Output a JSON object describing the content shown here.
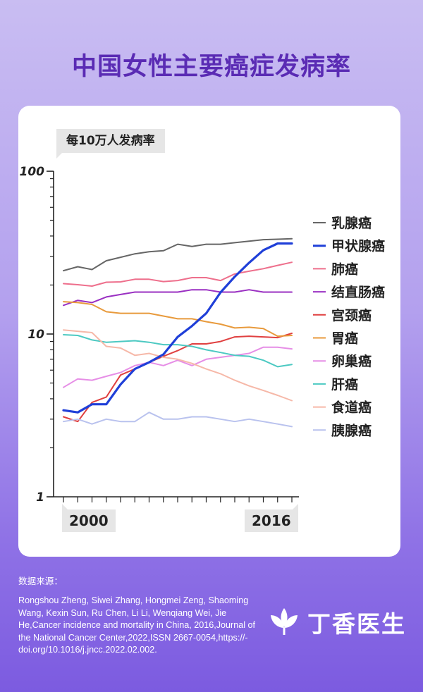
{
  "title": "中国女性主要癌症发病率",
  "unit_label": "每10万人发病率",
  "x_first_label": "2000",
  "x_last_label": "2016",
  "source_label": "数据来源：",
  "source_text": "Rongshou Zheng, Siwei Zhang, Hongmei Zeng, Shaoming Wang, Kexin Sun, Ru Chen, Li Li, Wenqiang Wei, Jie He,Cancer incidence and mortality in China, 2016,Journal of the National Cancer Center,2022,ISSN 2667-0054,https://-doi.org/10.1016/j.jncc.2022.02.002.",
  "brand_name": "丁香医生",
  "brand_icon": "clove-flower-icon",
  "colors": {
    "title": "#5a2bb4",
    "background_top": "#c9bdf2",
    "background_bottom": "#7c5be0"
  },
  "chart_data": {
    "type": "line",
    "y_scale": "log",
    "ylim": [
      1,
      100
    ],
    "y_ticks": [
      1,
      10,
      100
    ],
    "y_tick_labels": [
      "1",
      "10",
      "100"
    ],
    "xlim": [
      2000,
      2016
    ],
    "x": [
      2000,
      2001,
      2002,
      2003,
      2004,
      2005,
      2006,
      2007,
      2008,
      2009,
      2010,
      2011,
      2012,
      2013,
      2014,
      2015,
      2016
    ],
    "legend_position": "right",
    "series": [
      {
        "name": "乳腺癌",
        "color": "#666666",
        "width": 2,
        "values": [
          24.5,
          25.9,
          24.9,
          28.2,
          29.6,
          31.1,
          32.0,
          32.5,
          35.6,
          34.5,
          35.6,
          35.6,
          36.4,
          37.2,
          38.0,
          38.2,
          38.5
        ]
      },
      {
        "name": "甲状腺癌",
        "color": "#1f3fd8",
        "width": 3.2,
        "values": [
          3.4,
          3.3,
          3.7,
          3.7,
          4.9,
          6.1,
          6.7,
          7.5,
          9.6,
          11.2,
          13.4,
          18.0,
          22.5,
          27.4,
          32.7,
          36.0,
          36.0
        ]
      },
      {
        "name": "肺癌",
        "color": "#ee6f8c",
        "width": 2,
        "values": [
          20.4,
          20.1,
          19.7,
          20.8,
          20.9,
          21.7,
          21.7,
          21.0,
          21.3,
          22.2,
          22.2,
          21.3,
          23.4,
          24.3,
          25.2,
          26.4,
          27.6
        ]
      },
      {
        "name": "结直肠癌",
        "color": "#9a30c2",
        "width": 2,
        "values": [
          15.0,
          16.1,
          15.6,
          16.9,
          17.5,
          18.1,
          18.1,
          18.1,
          18.1,
          18.7,
          18.7,
          18.1,
          18.1,
          18.7,
          18.1,
          18.1,
          18.1
        ]
      },
      {
        "name": "宫颈癌",
        "color": "#e04040",
        "width": 2,
        "values": [
          3.1,
          2.9,
          3.8,
          4.1,
          5.6,
          6.1,
          6.7,
          7.3,
          7.9,
          8.7,
          8.7,
          9.0,
          9.6,
          9.7,
          9.6,
          9.5,
          10.1
        ]
      },
      {
        "name": "胃癌",
        "color": "#e89a3c",
        "width": 2,
        "values": [
          15.8,
          15.6,
          15.2,
          13.7,
          13.4,
          13.4,
          13.4,
          12.9,
          12.4,
          12.4,
          11.9,
          11.5,
          10.9,
          11.0,
          10.8,
          9.7,
          9.8
        ]
      },
      {
        "name": "卵巢癌",
        "color": "#e68ee6",
        "width": 2,
        "values": [
          4.7,
          5.3,
          5.2,
          5.5,
          5.8,
          6.4,
          6.7,
          6.4,
          6.9,
          6.4,
          7.0,
          7.2,
          7.4,
          7.6,
          8.3,
          8.3,
          8.1
        ]
      },
      {
        "name": "肝癌",
        "color": "#4cc9c2",
        "width": 2,
        "values": [
          9.9,
          9.8,
          9.2,
          8.9,
          9.0,
          9.1,
          8.9,
          8.6,
          8.6,
          8.4,
          8.0,
          7.7,
          7.4,
          7.3,
          6.9,
          6.3,
          6.5
        ]
      },
      {
        "name": "食道癌",
        "color": "#f6b8a8",
        "width": 2,
        "values": [
          10.6,
          10.4,
          10.2,
          8.4,
          8.2,
          7.4,
          7.6,
          7.2,
          7.0,
          6.6,
          6.1,
          5.7,
          5.2,
          4.8,
          4.5,
          4.2,
          3.9
        ]
      },
      {
        "name": "胰腺癌",
        "color": "#b9c2ee",
        "width": 2,
        "values": [
          2.9,
          3.0,
          2.8,
          3.0,
          2.9,
          2.9,
          3.3,
          3.0,
          3.0,
          3.1,
          3.1,
          3.0,
          2.9,
          3.0,
          2.9,
          2.8,
          2.7
        ]
      }
    ]
  }
}
